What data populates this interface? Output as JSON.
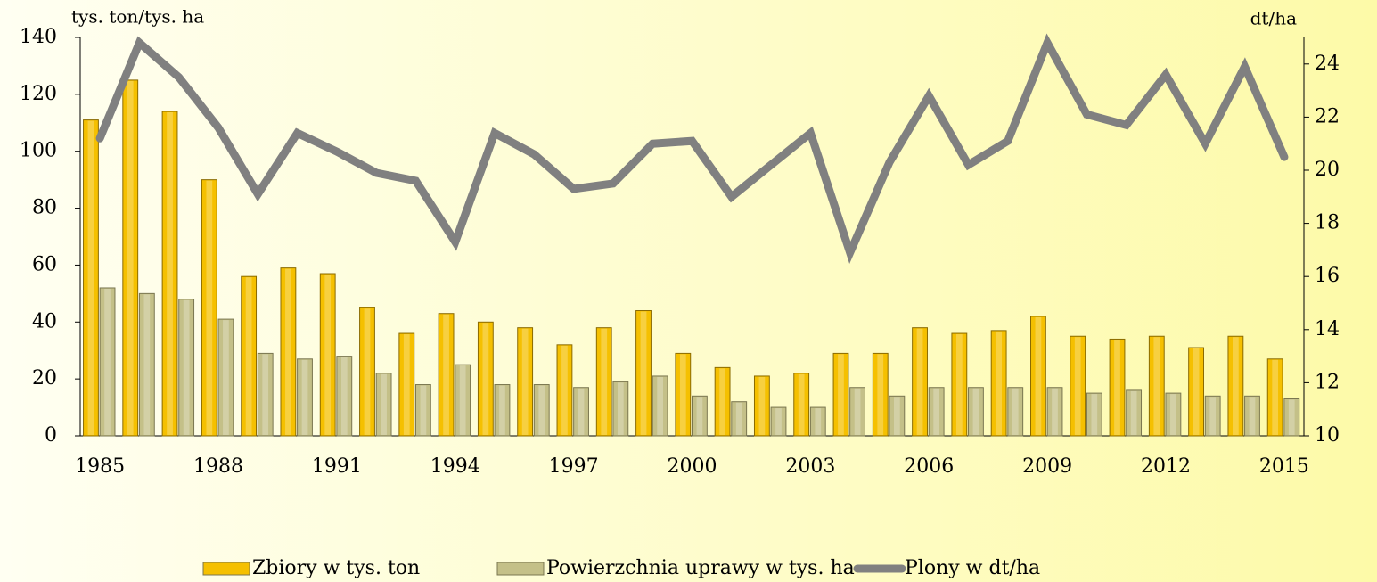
{
  "chart_data": {
    "type": "bar",
    "y_label": "tys. ton/tys. ha",
    "y2_label": "dt/ha",
    "categories": [
      "1985",
      null,
      null,
      "1988",
      null,
      null,
      "1991",
      null,
      null,
      "1994",
      null,
      null,
      "1997",
      null,
      null,
      "2000",
      null,
      null,
      "2003",
      null,
      null,
      "2006",
      null,
      null,
      "2009",
      null,
      null,
      "2012",
      null,
      null,
      "2015"
    ],
    "series": [
      {
        "name": "Zbiory w tys. ton",
        "type": "bar",
        "color": "#f5c000",
        "values": [
          111,
          125,
          114,
          90,
          56,
          59,
          57,
          45,
          36,
          43,
          40,
          38,
          32,
          38,
          44,
          29,
          24,
          21,
          22,
          29,
          29,
          38,
          36,
          37,
          42,
          35,
          34,
          35,
          31,
          35,
          27
        ]
      },
      {
        "name": "Powierzchnia uprawy w tys. ha",
        "type": "bar",
        "color": "#c4c088",
        "values": [
          52,
          50,
          48,
          41,
          29,
          27,
          28,
          22,
          18,
          25,
          18,
          18,
          17,
          19,
          21,
          14,
          12,
          10,
          10,
          17,
          14,
          17,
          17,
          17,
          17,
          15,
          16,
          15,
          14,
          14,
          13
        ]
      },
      {
        "name": "Plony w dt/ha",
        "type": "line",
        "axis": "y2",
        "color": "#808080",
        "values": [
          21.2,
          24.8,
          23.5,
          21.6,
          19.1,
          21.4,
          20.7,
          19.9,
          19.6,
          17.3,
          21.4,
          20.6,
          19.3,
          19.5,
          21.0,
          21.1,
          19.0,
          20.2,
          21.4,
          16.9,
          20.3,
          22.8,
          20.2,
          21.1,
          24.8,
          22.1,
          21.7,
          23.6,
          21.0,
          23.9,
          20.5
        ]
      }
    ],
    "ylim": [
      0,
      140
    ],
    "yticks": [
      0,
      20,
      40,
      60,
      80,
      100,
      120,
      140
    ],
    "y2lim": [
      10,
      25
    ],
    "y2ticks": [
      10,
      12,
      14,
      16,
      18,
      20,
      22,
      24
    ],
    "legend": "bottom"
  }
}
